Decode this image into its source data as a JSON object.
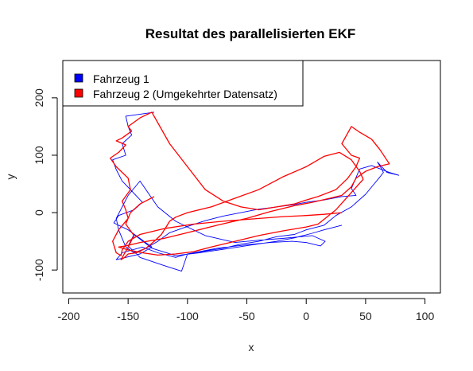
{
  "chart_data": {
    "type": "line",
    "title": "Resultat des parallelisierten EKF",
    "xlabel": "x",
    "ylabel": "y",
    "xlim": [
      -205,
      113
    ],
    "ylim": [
      -140,
      265
    ],
    "xticks": [
      "-200",
      "-150",
      "-100",
      "-50",
      "0",
      "50",
      "100"
    ],
    "xtick_values": [
      -200,
      -150,
      -100,
      -50,
      0,
      50,
      100
    ],
    "yticks": [
      "-100",
      "0",
      "100",
      "200"
    ],
    "ytick_values": [
      -100,
      0,
      100,
      200
    ],
    "grid": false,
    "legend_position": "top-left",
    "series": [
      {
        "name": "Fahrzeug 1",
        "color": "#0000ff",
        "x": [
          -128,
          -138,
          -152,
          -150,
          -147,
          -155,
          -152,
          -163,
          -160,
          -155,
          -148,
          -138,
          -145,
          -158,
          -162,
          -150,
          -140,
          -130,
          -140,
          -152,
          -160,
          -155,
          -138,
          -125,
          -110,
          -100,
          -88,
          -70,
          -55,
          -40,
          -25,
          -10,
          0,
          15,
          25,
          38,
          50,
          58,
          62,
          65,
          63,
          60,
          68,
          78,
          70,
          55,
          45,
          38,
          42,
          30,
          15,
          0,
          -10,
          -25,
          -40,
          -55,
          -70,
          -85,
          -100,
          -115,
          -125,
          -135,
          -145,
          -152,
          -158,
          -160,
          -150,
          -140,
          -125,
          -110,
          -100,
          -85,
          -60,
          -40,
          -20,
          5,
          16,
          12,
          0,
          -12,
          -30,
          -50,
          -75,
          -100,
          -105,
          -120,
          -140,
          -150,
          -145,
          -130,
          -110,
          -90,
          -70,
          -45,
          -25,
          -10,
          5,
          15,
          30
        ],
        "y": [
          175,
          172,
          168,
          150,
          135,
          120,
          100,
          92,
          75,
          55,
          40,
          18,
          5,
          -5,
          -18,
          -30,
          -45,
          -60,
          -72,
          -78,
          -82,
          -70,
          -60,
          -70,
          -78,
          -72,
          -68,
          -62,
          -55,
          -50,
          -42,
          -38,
          -30,
          -22,
          -5,
          10,
          32,
          52,
          62,
          70,
          78,
          88,
          70,
          65,
          70,
          82,
          76,
          42,
          30,
          28,
          22,
          18,
          14,
          10,
          6,
          0,
          -6,
          -14,
          -24,
          -35,
          -50,
          -62,
          -70,
          -60,
          -30,
          -10,
          30,
          55,
          10,
          -15,
          -25,
          -40,
          -52,
          -48,
          -45,
          -40,
          -50,
          -58,
          -52,
          -50,
          -52,
          -56,
          -62,
          -72,
          -102,
          -92,
          -78,
          -58,
          -38,
          -62,
          -75,
          -70,
          -64,
          -56,
          -50,
          -44,
          -36,
          -30,
          -22
        ]
      },
      {
        "name": "Fahrzeug 2 (Umgekehrter Datensatz)",
        "color": "#ff0000",
        "x": [
          30,
          15,
          0,
          -20,
          -45,
          -70,
          -95,
          -120,
          -140,
          -150,
          -155,
          -156,
          -160,
          -163,
          -158,
          -150,
          -152,
          -155,
          -148,
          -150,
          -160,
          -165,
          -158,
          -152,
          -160,
          -155,
          -147,
          -150,
          -140,
          -130,
          -115,
          -100,
          -85,
          -70,
          -55,
          -40,
          -25,
          -10,
          0,
          10,
          25,
          35,
          42,
          45,
          38,
          30,
          38,
          45,
          55,
          62,
          70,
          60,
          50,
          42,
          38,
          30,
          20,
          5,
          -10,
          -30,
          -50,
          -75,
          -100,
          -120,
          -140,
          -152,
          -158,
          -150,
          -138,
          -125,
          -110,
          -95,
          -80,
          -60,
          -40,
          -20,
          0,
          10,
          25,
          38,
          48,
          45,
          38,
          28,
          15,
          0,
          -20,
          -40,
          -60,
          -80,
          -100,
          -110,
          -115,
          -118,
          -122,
          -128,
          -135,
          -143,
          -150,
          -153,
          -156,
          -150,
          -145,
          -152,
          -148,
          -140,
          -128
        ],
        "y": [
          0,
          -3,
          -5,
          -7,
          -11,
          -15,
          -20,
          -28,
          -38,
          -50,
          -65,
          -75,
          -70,
          -50,
          -30,
          -10,
          5,
          20,
          40,
          60,
          80,
          95,
          105,
          118,
          125,
          130,
          142,
          150,
          165,
          175,
          120,
          80,
          40,
          20,
          10,
          5,
          10,
          15,
          22,
          28,
          40,
          60,
          80,
          95,
          100,
          120,
          150,
          140,
          128,
          110,
          85,
          80,
          72,
          60,
          45,
          30,
          25,
          18,
          12,
          2,
          -10,
          -22,
          -35,
          -45,
          -52,
          -58,
          -60,
          -65,
          -70,
          -74,
          -72,
          -68,
          -60,
          -50,
          -40,
          -32,
          -25,
          -20,
          5,
          35,
          58,
          72,
          92,
          105,
          98,
          80,
          62,
          40,
          25,
          10,
          0,
          -8,
          -15,
          -25,
          -38,
          -50,
          -62,
          -70,
          -72,
          -78,
          -82,
          -60,
          -40,
          -20,
          0,
          15,
          28
        ]
      }
    ]
  }
}
